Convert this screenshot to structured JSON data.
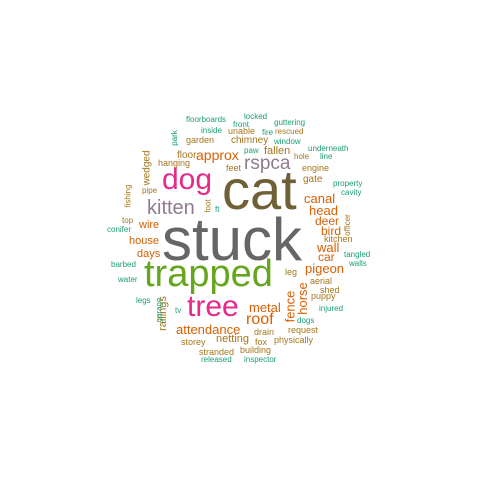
{
  "colors": {
    "grey": "#666666",
    "olive": "#6f6035",
    "green": "#66a61e",
    "pink": "#e7298a",
    "orange": "#d95f02",
    "mauve": "#8f7a8f",
    "teal": "#1b9e77",
    "brown": "#a6761d"
  },
  "words": [
    {
      "text": "stuck",
      "color": "#666666"
    },
    {
      "text": "cat",
      "color": "#6f6035"
    },
    {
      "text": "trapped",
      "color": "#66a61e"
    },
    {
      "text": "dog",
      "color": "#e7298a"
    },
    {
      "text": "tree",
      "color": "#e7298a"
    },
    {
      "text": "kitten",
      "color": "#8f7a8f"
    },
    {
      "text": "rspca",
      "color": "#8f7a8f"
    },
    {
      "text": "roof",
      "color": "#d95f02"
    },
    {
      "text": "approx",
      "color": "#d95f02"
    },
    {
      "text": "metal",
      "color": "#d95f02"
    },
    {
      "text": "pigeon",
      "color": "#d95f02"
    },
    {
      "text": "canal",
      "color": "#d95f02"
    },
    {
      "text": "head",
      "color": "#d95f02"
    },
    {
      "text": "wall",
      "color": "#d95f02"
    },
    {
      "text": "attendance",
      "color": "#d95f02"
    },
    {
      "text": "fence",
      "color": "#d95f02"
    },
    {
      "text": "horse",
      "color": "#d95f02"
    },
    {
      "text": "deer",
      "color": "#d95f02"
    },
    {
      "text": "bird",
      "color": "#d95f02"
    },
    {
      "text": "car",
      "color": "#d95f02"
    },
    {
      "text": "house",
      "color": "#d95f02"
    },
    {
      "text": "days",
      "color": "#d95f02"
    },
    {
      "text": "wire",
      "color": "#d95f02"
    },
    {
      "text": "railings",
      "color": "#a6761d"
    },
    {
      "text": "netting",
      "color": "#a6761d"
    },
    {
      "text": "fallen",
      "color": "#a6761d"
    },
    {
      "text": "gate",
      "color": "#a6761d"
    },
    {
      "text": "floor",
      "color": "#a6761d"
    },
    {
      "text": "wedged",
      "color": "#a6761d"
    },
    {
      "text": "chimney",
      "color": "#a6761d"
    },
    {
      "text": "garden",
      "color": "#a6761d"
    },
    {
      "text": "unable",
      "color": "#a6761d"
    },
    {
      "text": "hanging",
      "color": "#a6761d"
    },
    {
      "text": "feet",
      "color": "#a6761d"
    },
    {
      "text": "engine",
      "color": "#a6761d"
    },
    {
      "text": "kitchen",
      "color": "#a6761d"
    },
    {
      "text": "leg",
      "color": "#a6761d"
    },
    {
      "text": "aerial",
      "color": "#a6761d"
    },
    {
      "text": "shed",
      "color": "#a6761d"
    },
    {
      "text": "puppy",
      "color": "#a6761d"
    },
    {
      "text": "storey",
      "color": "#a6761d"
    },
    {
      "text": "drain",
      "color": "#a6761d"
    },
    {
      "text": "fox",
      "color": "#a6761d"
    },
    {
      "text": "request",
      "color": "#a6761d"
    },
    {
      "text": "physically",
      "color": "#a6761d"
    },
    {
      "text": "stranded",
      "color": "#a6761d"
    },
    {
      "text": "building",
      "color": "#a6761d"
    },
    {
      "text": "hole",
      "color": "#a6761d"
    },
    {
      "text": "rescued",
      "color": "#a6761d"
    },
    {
      "text": "foot",
      "color": "#a6761d"
    },
    {
      "text": "pipe",
      "color": "#a6761d"
    },
    {
      "text": "top",
      "color": "#a6761d"
    },
    {
      "text": "fishing",
      "color": "#a6761d"
    },
    {
      "text": "officer",
      "color": "#a6761d"
    },
    {
      "text": "floorboards",
      "color": "#1b9e77"
    },
    {
      "text": "locked",
      "color": "#1b9e77"
    },
    {
      "text": "guttering",
      "color": "#1b9e77"
    },
    {
      "text": "inside",
      "color": "#1b9e77"
    },
    {
      "text": "front",
      "color": "#1b9e77"
    },
    {
      "text": "fire",
      "color": "#1b9e77"
    },
    {
      "text": "paw",
      "color": "#1b9e77"
    },
    {
      "text": "window",
      "color": "#1b9e77"
    },
    {
      "text": "park",
      "color": "#1b9e77"
    },
    {
      "text": "underneath",
      "color": "#1b9e77"
    },
    {
      "text": "line",
      "color": "#1b9e77"
    },
    {
      "text": "property",
      "color": "#1b9e77"
    },
    {
      "text": "cavity",
      "color": "#1b9e77"
    },
    {
      "text": "tangled",
      "color": "#1b9e77"
    },
    {
      "text": "walls",
      "color": "#1b9e77"
    },
    {
      "text": "ft",
      "color": "#1b9e77"
    },
    {
      "text": "conifer",
      "color": "#1b9e77"
    },
    {
      "text": "barbed",
      "color": "#1b9e77"
    },
    {
      "text": "water",
      "color": "#1b9e77"
    },
    {
      "text": "legs",
      "color": "#1b9e77"
    },
    {
      "text": "garage",
      "color": "#1b9e77"
    },
    {
      "text": "tv",
      "color": "#1b9e77"
    },
    {
      "text": "dogs",
      "color": "#1b9e77"
    },
    {
      "text": "injured",
      "color": "#1b9e77"
    },
    {
      "text": "released",
      "color": "#1b9e77"
    },
    {
      "text": "inspector",
      "color": "#1b9e77"
    }
  ]
}
